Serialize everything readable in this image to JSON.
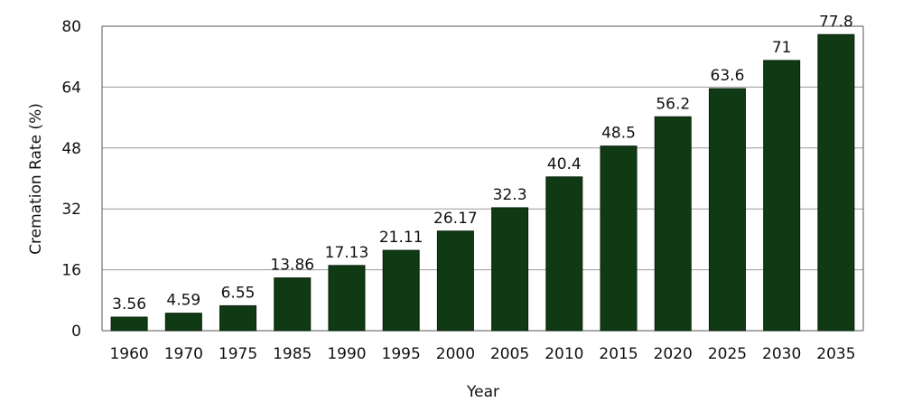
{
  "chart_data": {
    "type": "bar",
    "title": "",
    "xlabel": "Year",
    "ylabel": "Cremation Rate (%)",
    "categories": [
      "1960",
      "1970",
      "1975",
      "1985",
      "1990",
      "1995",
      "2000",
      "2005",
      "2010",
      "2015",
      "2020",
      "2025",
      "2030",
      "2035"
    ],
    "values": [
      3.56,
      4.59,
      6.55,
      13.86,
      17.13,
      21.11,
      26.17,
      32.3,
      40.4,
      48.5,
      56.2,
      63.6,
      71,
      77.8
    ],
    "value_labels": [
      "3.56",
      "4.59",
      "6.55",
      "13.86",
      "17.13",
      "21.11",
      "26.17",
      "32.3",
      "40.4",
      "48.5",
      "56.2",
      "63.6",
      "71",
      "77.8"
    ],
    "ylim": [
      0,
      80
    ],
    "yticks": [
      0,
      16,
      32,
      48,
      64,
      80
    ],
    "grid": "horizontal",
    "bar_color": "#0f3a14"
  }
}
